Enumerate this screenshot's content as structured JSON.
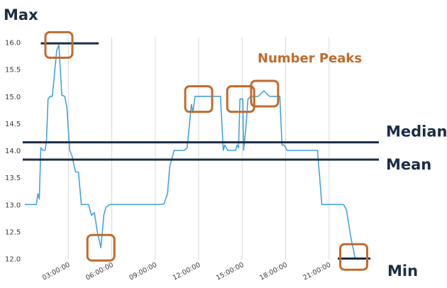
{
  "chart_data": {
    "type": "line",
    "x_ticks": [
      "03:00:00",
      "06:00:00",
      "09:00:00",
      "12:00:00",
      "15:00:00",
      "18:00:00",
      "21:00:00"
    ],
    "y_ticks": [
      "16.0",
      "15.5",
      "15.0",
      "14.5",
      "14.0",
      "13.5",
      "13.0",
      "12.5",
      "12.0"
    ],
    "xlim_hours": [
      0.0,
      23.85
    ],
    "ylim": [
      11.98,
      16.1
    ],
    "grid": "vertical",
    "series": [
      {
        "color": "#45a3de",
        "x_hours": [
          0.0,
          0.8,
          0.9,
          1.0,
          1.1,
          1.25,
          1.4,
          1.5,
          1.6,
          1.75,
          1.9,
          2.2,
          2.35,
          2.55,
          2.75,
          2.9,
          3.1,
          3.25,
          3.5,
          3.7,
          3.9,
          4.05,
          4.25,
          4.4,
          4.6,
          4.8,
          5.0,
          5.25,
          5.45,
          5.6,
          5.85,
          6.05,
          6.15,
          6.35,
          6.6,
          6.8,
          7.5,
          8.5,
          9.3,
          9.6,
          9.85,
          10.0,
          10.3,
          11.0,
          11.2,
          11.5,
          11.6,
          11.75,
          11.9,
          12.2,
          12.5,
          13.0,
          13.5,
          13.7,
          13.8,
          14.0,
          14.3,
          14.55,
          14.65,
          14.75,
          14.85,
          15.05,
          15.1,
          15.25,
          15.4,
          15.6,
          15.8,
          16.1,
          16.5,
          16.9,
          17.1,
          17.6,
          17.75,
          17.9,
          18.1,
          18.6,
          19.0,
          19.5,
          20.2,
          20.5,
          21.0,
          21.5,
          21.8,
          22.0,
          22.2,
          22.5,
          22.8,
          23.0,
          23.3,
          23.85
        ],
        "y_values": [
          13.0,
          13.0,
          13.2,
          13.1,
          14.05,
          14.0,
          14.0,
          14.2,
          14.95,
          15.0,
          15.0,
          15.85,
          15.95,
          15.02,
          15.0,
          14.8,
          14.0,
          13.9,
          13.6,
          13.6,
          13.0,
          13.0,
          13.0,
          13.0,
          12.8,
          12.85,
          12.5,
          12.2,
          12.8,
          12.95,
          13.0,
          13.0,
          13.0,
          13.0,
          13.0,
          13.0,
          13.0,
          13.0,
          13.0,
          13.01,
          13.2,
          13.7,
          14.0,
          14.0,
          14.05,
          14.85,
          14.7,
          15.0,
          15.0,
          15.0,
          15.0,
          15.0,
          15.0,
          14.0,
          14.1,
          14.0,
          14.0,
          14.0,
          14.1,
          14.05,
          14.95,
          14.95,
          14.0,
          14.4,
          14.95,
          15.0,
          15.0,
          15.0,
          15.1,
          15.0,
          15.0,
          15.0,
          14.1,
          14.1,
          14.0,
          14.0,
          14.0,
          14.0,
          14.0,
          13.0,
          13.0,
          13.0,
          13.0,
          13.0,
          12.9,
          12.4,
          12.0,
          12.0,
          12.0,
          12.0
        ]
      }
    ],
    "reference_lines": [
      {
        "label": "Max",
        "value": 15.98
      },
      {
        "label": "Median",
        "value": 14.15
      },
      {
        "label": "Mean",
        "value": 13.83
      },
      {
        "label": "Min",
        "value": 12.0
      }
    ],
    "annotations": {
      "peaks_label": "Number Peaks",
      "box_color": "#c26a2c",
      "peak_boxes": [
        {
          "x_hours": 2.35,
          "y": 15.95
        },
        {
          "x_hours": 5.25,
          "y": 12.2
        },
        {
          "x_hours": 12.0,
          "y": 14.95
        },
        {
          "x_hours": 14.9,
          "y": 14.95
        },
        {
          "x_hours": 16.55,
          "y": 15.05
        },
        {
          "x_hours": 22.7,
          "y": 12.03
        }
      ]
    },
    "ref_line_color": "#1c2e44",
    "grid_color": "#d9d9d9"
  }
}
